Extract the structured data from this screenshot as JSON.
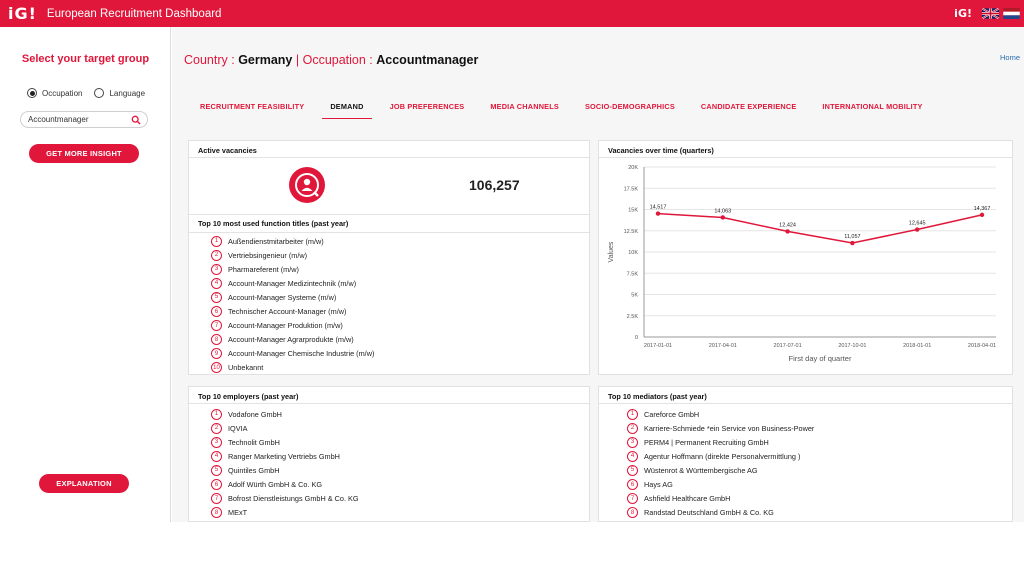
{
  "app": {
    "logo_text": "iG!",
    "title": "European Recruitment Dashboard",
    "right_logo_text": "iG!"
  },
  "sidebar": {
    "title": "Select your target group",
    "radio_options": [
      "Occupation",
      "Language"
    ],
    "selected_option": "Occupation",
    "search_value": "Accountmanager",
    "insight_button": "GET MORE INSIGHT",
    "explanation_button": "EXPLANATION"
  },
  "header": {
    "country_label": "Country : ",
    "country_value": "Germany",
    "separator": " | ",
    "occupation_label": "Occupation : ",
    "occupation_value": "Accountmanager",
    "home_link": "Home"
  },
  "tabs": [
    {
      "label": "RECRUITMENT FEASIBILITY",
      "active": false
    },
    {
      "label": "DEMAND",
      "active": true
    },
    {
      "label": "JOB PREFERENCES",
      "active": false
    },
    {
      "label": "MEDIA CHANNELS",
      "active": false
    },
    {
      "label": "SOCIO-DEMOGRAPHICS",
      "active": false
    },
    {
      "label": "CANDIDATE EXPERIENCE",
      "active": false
    },
    {
      "label": "INTERNATIONAL MOBILITY",
      "active": false
    }
  ],
  "active_vacancies": {
    "title": "Active vacancies",
    "value": "106,257"
  },
  "function_titles": {
    "title": "Top 10 most used function titles (past year)",
    "items": [
      "Außendienstmitarbeiter (m/w)",
      "Vertriebsingenieur (m/w)",
      "Pharmareferent (m/w)",
      "Account-Manager Medizintechnik (m/w)",
      "Account-Manager Systeme (m/w)",
      "Technischer Account-Manager (m/w)",
      "Account-Manager Produktion (m/w)",
      "Account-Manager Agrarprodukte (m/w)",
      "Account-Manager Chemische Industrie (m/w)",
      "Unbekannt"
    ]
  },
  "employers": {
    "title": "Top 10 employers (past year)",
    "items": [
      "Vodafone GmbH",
      "IQVIA",
      "Technolit GmbH",
      "Ranger Marketing Vertriebs GmbH",
      "Quintiles GmbH",
      "Adolf Würth GmbH & Co. KG",
      "Bofrost Dienstleistungs GmbH & Co. KG",
      "MExT"
    ]
  },
  "mediators": {
    "title": "Top 10 mediators (past year)",
    "items": [
      "Careforce GmbH",
      "Karriere-Schmiede *ein Service von Business-Power",
      "PERM4 | Permanent Recruiting GmbH",
      "Agentur Hoffmann (direkte Personalvermittlung )",
      "Wüstenrot & Württembergische AG",
      "Hays AG",
      "Ashfield Healthcare GmbH",
      "Randstad Deutschland GmbH & Co. KG"
    ]
  },
  "chart_data": {
    "type": "line",
    "title": "Vacancies over time (quarters)",
    "xlabel": "First day of quarter",
    "ylabel": "Values",
    "categories": [
      "2017-01-01",
      "2017-04-01",
      "2017-07-01",
      "2017-10-01",
      "2018-01-01",
      "2018-04-01"
    ],
    "values": [
      14517,
      14063,
      12424,
      11057,
      12645,
      14367
    ],
    "value_labels": [
      "14,517",
      "14,063",
      "12,424",
      "11,057",
      "12,645",
      "14,367"
    ],
    "yticks": [
      0,
      2500,
      5000,
      7500,
      10000,
      12500,
      15000,
      17500,
      20000
    ],
    "ytick_labels": [
      "0",
      "2.5K",
      "5K",
      "7.5K",
      "10K",
      "12.5K",
      "15K",
      "17.5K",
      "20K"
    ],
    "ylim": [
      0,
      20000
    ],
    "grid": true,
    "line_color": "#e0173a"
  },
  "colors": {
    "accent": "#e0173a",
    "link": "#2a6db3"
  },
  "icons": {
    "search": "search-icon",
    "vacancy": "person-search-icon",
    "flag_uk": "uk-flag-icon",
    "flag_nl": "nl-flag-icon"
  }
}
